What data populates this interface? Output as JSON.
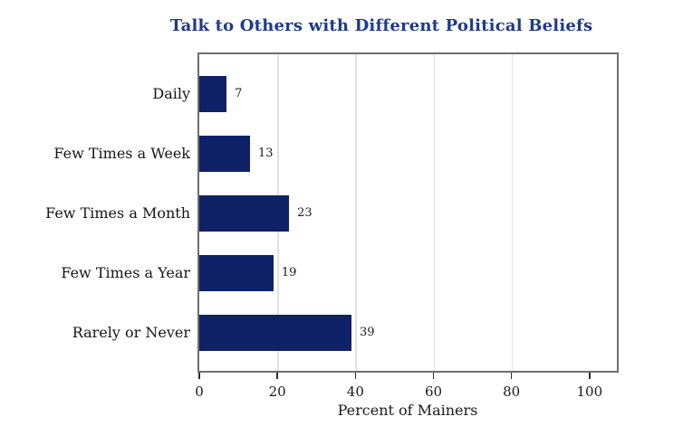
{
  "chart_data": {
    "type": "bar",
    "orientation": "horizontal",
    "title": "Talk to Others with Different Political Beliefs",
    "categories": [
      "Daily",
      "Few Times a Week",
      "Few Times a Month",
      "Few Times a Year",
      "Rarely or Never"
    ],
    "values": [
      7,
      13,
      23,
      19,
      39
    ],
    "value_labels": [
      "7",
      "13",
      "23",
      "19",
      "39"
    ],
    "xlabel": "Percent of Mainers",
    "xticks": [
      0,
      20,
      40,
      60,
      80,
      100
    ],
    "xtick_labels": [
      "0",
      "20",
      "40",
      "60",
      "80",
      "100"
    ],
    "xlim": [
      0,
      107
    ],
    "gridlines": [
      20,
      40,
      60,
      80
    ],
    "grid": "vertical-only",
    "legend": "none",
    "colors": {
      "bar": "#0f2167",
      "title": "#1d3a90",
      "axis_box": "#6e6e6e",
      "grid": "#e2e2e2",
      "tick": "#2e2e2e",
      "label_text": "#161616",
      "value_text": "#1a1a1a",
      "background": "#ffffff"
    }
  }
}
